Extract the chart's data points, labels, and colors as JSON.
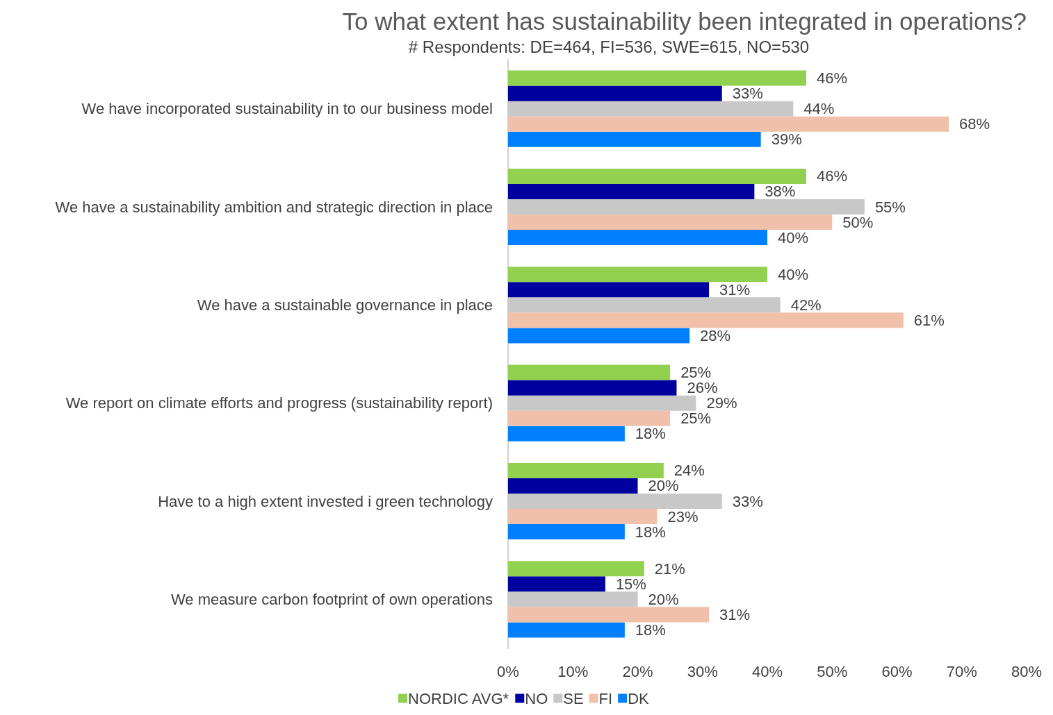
{
  "chart_data": {
    "type": "bar",
    "orientation": "horizontal",
    "title": "To what extent has sustainability been integrated in operations?",
    "subtitle": "# Respondents: DE=464, FI=536, SWE=615, NO=530",
    "categories": [
      "We have incorporated sustainability in to our business model",
      "We have a sustainability ambition and strategic direction in place",
      "We have a sustainable governance in place",
      "We report on climate efforts and progress (sustainability report)",
      "Have to a high extent invested i green technology",
      "We measure carbon footprint of own operations"
    ],
    "series": [
      {
        "name": "NORDIC AVG*",
        "color": "#92d050",
        "values": [
          46,
          46,
          40,
          25,
          24,
          21
        ],
        "value_labels": [
          "46%",
          "46%",
          "40%",
          "25%",
          "24%",
          "21%"
        ]
      },
      {
        "name": "NO",
        "color": "#00009f",
        "values": [
          33,
          38,
          31,
          26,
          20,
          15
        ],
        "value_labels": [
          "33%",
          "38%",
          "31%",
          "26%",
          "20%",
          "15%"
        ]
      },
      {
        "name": "SE",
        "color": "#c8c8c8",
        "values": [
          44,
          55,
          42,
          29,
          33,
          20
        ],
        "value_labels": [
          "44%",
          "55%",
          "42%",
          "29%",
          "33%",
          "20%"
        ]
      },
      {
        "name": "FI",
        "color": "#f0c0aa",
        "values": [
          68,
          50,
          61,
          25,
          23,
          31
        ],
        "value_labels": [
          "68%",
          "50%",
          "61%",
          "25%",
          "23%",
          "31%"
        ]
      },
      {
        "name": "DK",
        "color": "#0080ff",
        "values": [
          39,
          40,
          28,
          18,
          18,
          18
        ],
        "value_labels": [
          "39%",
          "40%",
          "28%",
          "18%",
          "18%",
          "18%"
        ]
      }
    ],
    "xlim": [
      0,
      80
    ],
    "xticks": [
      {
        "value": 0,
        "label": "0%"
      },
      {
        "value": 10,
        "label": "10%"
      },
      {
        "value": 20,
        "label": "20%"
      },
      {
        "value": 30,
        "label": "30%"
      },
      {
        "value": 40,
        "label": "40%"
      },
      {
        "value": 50,
        "label": "50%"
      },
      {
        "value": 60,
        "label": "60%"
      },
      {
        "value": 70,
        "label": "70%"
      },
      {
        "value": 80,
        "label": "80%"
      }
    ],
    "grid": false,
    "legend": "bottom"
  }
}
